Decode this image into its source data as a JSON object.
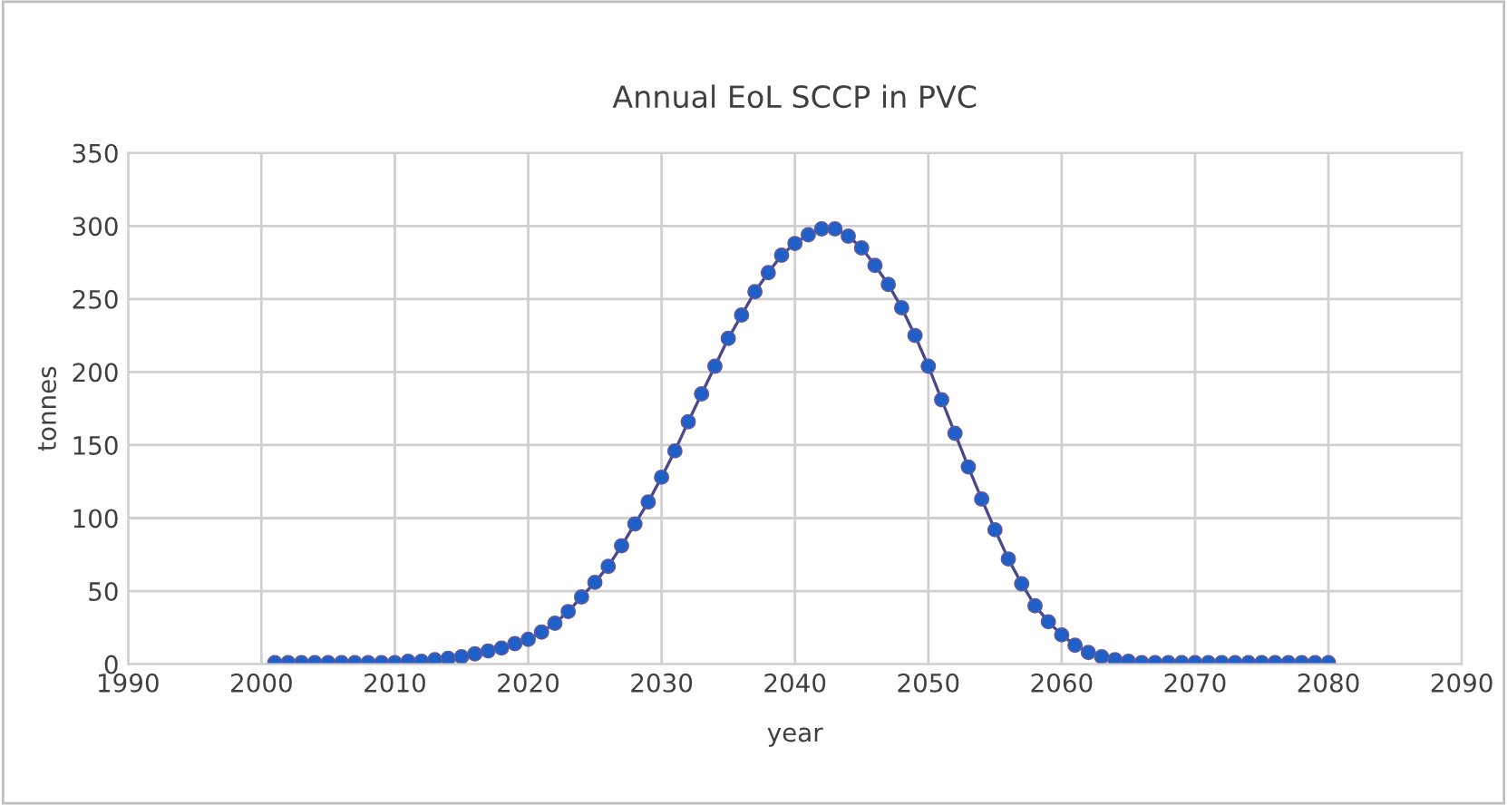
{
  "chart_data": {
    "type": "line",
    "title": "Annual EoL SCCP in PVC",
    "xlabel": "year",
    "ylabel": "tonnes",
    "x": [
      2001,
      2002,
      2003,
      2004,
      2005,
      2006,
      2007,
      2008,
      2009,
      2010,
      2011,
      2012,
      2013,
      2014,
      2015,
      2016,
      2017,
      2018,
      2019,
      2020,
      2021,
      2022,
      2023,
      2024,
      2025,
      2026,
      2027,
      2028,
      2029,
      2030,
      2031,
      2032,
      2033,
      2034,
      2035,
      2036,
      2037,
      2038,
      2039,
      2040,
      2041,
      2042,
      2043,
      2044,
      2045,
      2046,
      2047,
      2048,
      2049,
      2050,
      2051,
      2052,
      2053,
      2054,
      2055,
      2056,
      2057,
      2058,
      2059,
      2060,
      2061,
      2062,
      2063,
      2064,
      2065,
      2066,
      2067,
      2068,
      2069,
      2070,
      2071,
      2072,
      2073,
      2074,
      2075,
      2076,
      2077,
      2078,
      2079,
      2080
    ],
    "series": [
      {
        "color": "#1f5fc8",
        "values": [
          1,
          1,
          1,
          1,
          1,
          1,
          1,
          1,
          1,
          1,
          2,
          2,
          3,
          4,
          5,
          7,
          9,
          11,
          14,
          17,
          22,
          28,
          36,
          46,
          56,
          67,
          81,
          96,
          111,
          128,
          146,
          166,
          185,
          204,
          223,
          239,
          255,
          268,
          280,
          288,
          294,
          298,
          298,
          293,
          285,
          273,
          260,
          244,
          225,
          204,
          181,
          158,
          135,
          113,
          92,
          72,
          55,
          40,
          29,
          20,
          13,
          8,
          5,
          3,
          2,
          1,
          1,
          1,
          1,
          1,
          1,
          1,
          1,
          1,
          1,
          1,
          1,
          1,
          1,
          1
        ]
      }
    ],
    "xlim": [
      1990,
      2090
    ],
    "xticks": [
      1990,
      2000,
      2010,
      2020,
      2030,
      2040,
      2050,
      2060,
      2070,
      2080,
      2090
    ],
    "ylim": [
      0,
      350
    ],
    "yticks": [
      0,
      50,
      100,
      150,
      200,
      250,
      300,
      350
    ],
    "grid": true,
    "marker": "circle",
    "line_style": "solid"
  }
}
